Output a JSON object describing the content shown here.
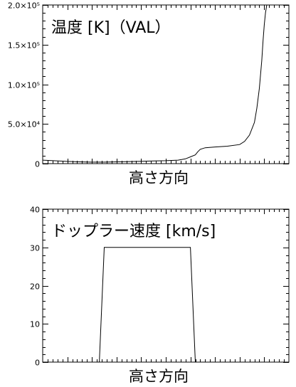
{
  "chart_data": [
    {
      "type": "line",
      "title": "温度 [K]（VAL）",
      "xlabel": "高さ方向",
      "ylabel": "",
      "ylim": [
        0,
        200000
      ],
      "yticks": [
        {
          "value": 0,
          "label": "0"
        },
        {
          "value": 50000,
          "label": "5.0×10⁴"
        },
        {
          "value": 100000,
          "label": "1.0×10⁵"
        },
        {
          "value": 150000,
          "label": "1.5×10⁵"
        },
        {
          "value": 200000,
          "label": "2.0×10⁵"
        }
      ],
      "xlim": [
        0,
        100
      ],
      "grid": false,
      "series": [
        {
          "x": [
            0,
            5,
            10,
            15,
            20,
            25,
            30,
            35,
            40,
            45,
            50,
            55,
            58,
            60,
            62,
            63,
            64,
            66,
            70,
            75,
            80,
            82,
            84,
            86,
            87,
            88,
            89,
            89.5,
            90,
            90.5,
            91
          ],
          "y": [
            4400,
            3600,
            2800,
            2200,
            1900,
            1900,
            2200,
            2600,
            3000,
            3300,
            3700,
            4400,
            6000,
            8500,
            11000,
            15000,
            18000,
            20000,
            21000,
            22000,
            24000,
            28000,
            36000,
            52000,
            70000,
            95000,
            130000,
            155000,
            175000,
            190000,
            200000
          ]
        }
      ]
    },
    {
      "type": "line",
      "title": "ドップラー速度 [km/s]",
      "xlabel": "高さ方向",
      "ylabel": "",
      "ylim": [
        0,
        40
      ],
      "yticks": [
        {
          "value": 0,
          "label": "0"
        },
        {
          "value": 10,
          "label": "10"
        },
        {
          "value": 20,
          "label": "20"
        },
        {
          "value": 30,
          "label": "30"
        },
        {
          "value": 40,
          "label": "40"
        }
      ],
      "xlim": [
        0,
        100
      ],
      "grid": false,
      "series": [
        {
          "x": [
            0,
            23,
            25,
            60,
            62,
            100
          ],
          "y": [
            0,
            0,
            30,
            30,
            0,
            0
          ]
        }
      ]
    }
  ]
}
